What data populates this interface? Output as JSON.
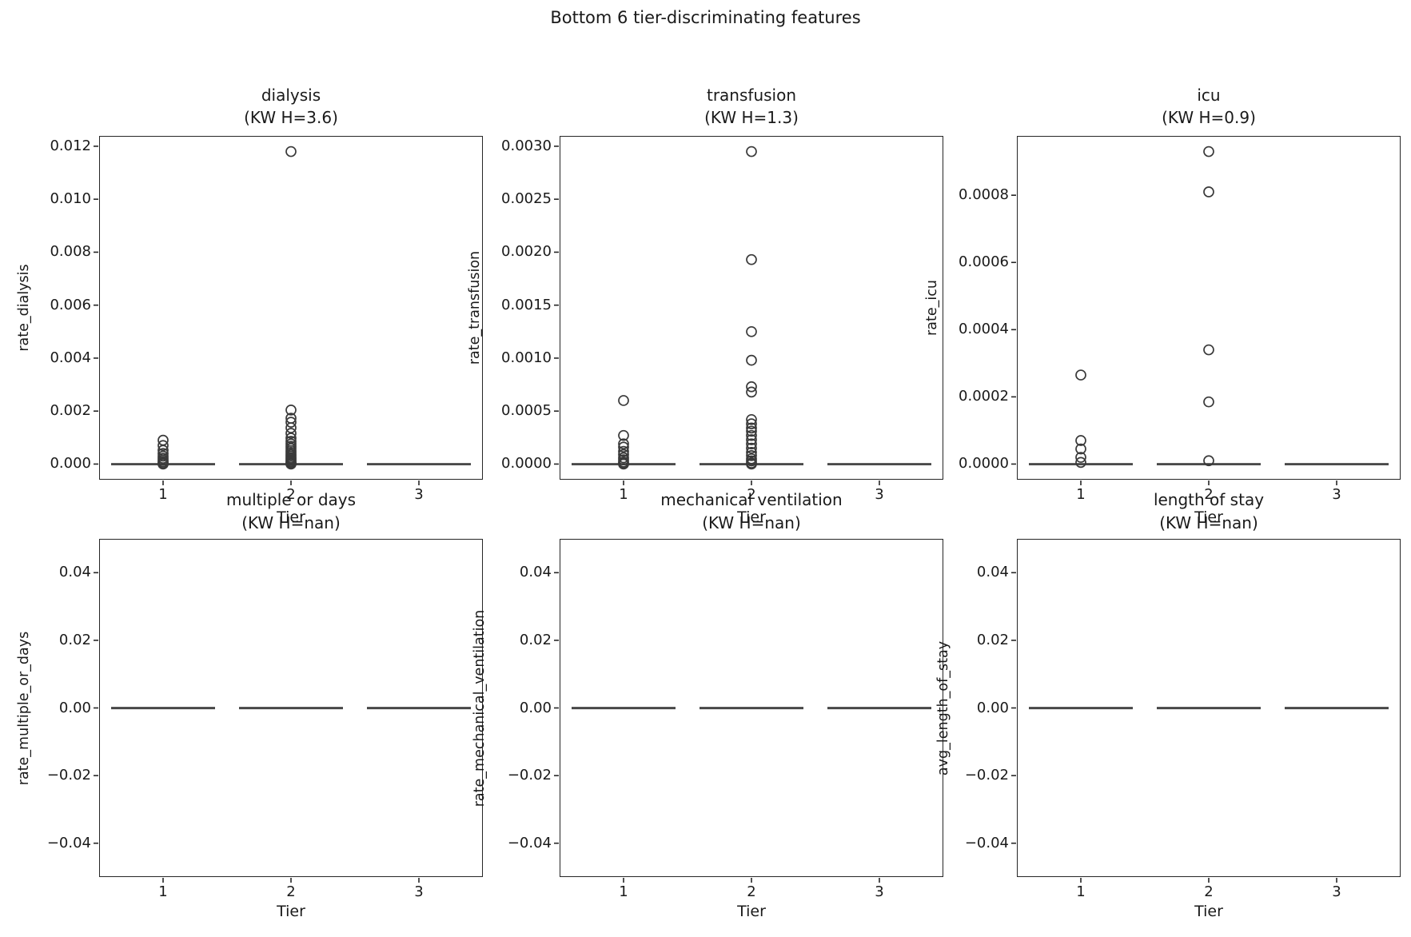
{
  "figure": {
    "suptitle": "Bottom 6 tier-discriminating features",
    "background": "#ffffff",
    "text_color": "#1a1a1a",
    "spine_color": "#262626",
    "marker_color": "#3a3a3a",
    "median_echo_color": "#8c8c8c"
  },
  "chart_data": {
    "type": "boxplot",
    "grid": {
      "rows": 2,
      "cols": 3
    },
    "xlabel": "Tier",
    "xtick_labels": [
      "1",
      "2",
      "3"
    ],
    "positions": [
      1,
      2,
      3
    ],
    "subplots": [
      {
        "title": "dialysis",
        "subtitle": "(KW H=3.6)",
        "ylabel": "rate_dialysis",
        "ylim": [
          -0.00059,
          0.01239
        ],
        "ytick_values": [
          0.0,
          0.002,
          0.004,
          0.006,
          0.008,
          0.01,
          0.012
        ],
        "ytick_labels": [
          "0.000",
          "0.002",
          "0.004",
          "0.006",
          "0.008",
          "0.010",
          "0.012"
        ],
        "medians": [
          0,
          0,
          0
        ],
        "fliers": [
          [
            0.0009,
            0.0007,
            0.00052,
            0.0004,
            0.0003,
            0.00022,
            0.00015,
            9e-05,
            4e-05,
            1e-05,
            0
          ],
          [
            0.0118,
            0.00204,
            0.00173,
            0.00158,
            0.00137,
            0.00116,
            0.00098,
            0.00086,
            0.00076,
            0.00067,
            0.00059,
            0.00051,
            0.00044,
            0.00037,
            0.00031,
            0.00025,
            0.0002,
            0.00015,
            0.0001,
            6e-05,
            3e-05,
            1e-05,
            0
          ],
          []
        ]
      },
      {
        "title": "transfusion",
        "subtitle": "(KW H=1.3)",
        "ylabel": "rate_transfusion",
        "ylim": [
          -0.0001475,
          0.0030975
        ],
        "ytick_values": [
          0.0,
          0.0005,
          0.001,
          0.0015,
          0.002,
          0.0025,
          0.003
        ],
        "ytick_labels": [
          "0.0000",
          "0.0005",
          "0.0010",
          "0.0015",
          "0.0020",
          "0.0025",
          "0.0030"
        ],
        "medians": [
          0,
          0,
          0
        ],
        "fliers": [
          [
            0.0006,
            0.00027,
            0.00019,
            0.00016,
            0.00012,
            9e-05,
            6e-05,
            4e-05,
            2e-05,
            1e-05,
            0
          ],
          [
            0.00295,
            0.00193,
            0.00125,
            0.00098,
            0.00073,
            0.00068,
            0.00042,
            0.00038,
            0.00034,
            0.00031,
            0.00027,
            0.00023,
            0.00019,
            0.00015,
            0.00011,
            8e-05,
            5e-05,
            3e-05,
            1e-05,
            0
          ],
          []
        ]
      },
      {
        "title": "icu",
        "subtitle": "(KW H=0.9)",
        "ylabel": "rate_icu",
        "ylim": [
          -4.65e-05,
          0.0009765
        ],
        "ytick_values": [
          0.0,
          0.0002,
          0.0004,
          0.0006,
          0.0008
        ],
        "ytick_labels": [
          "0.0000",
          "0.0002",
          "0.0004",
          "0.0006",
          "0.0008"
        ],
        "medians": [
          0,
          0,
          0
        ],
        "fliers": [
          [
            0.000265,
            7e-05,
            4.5e-05,
            2e-05,
            5e-06
          ],
          [
            0.00093,
            0.00081,
            0.00034,
            0.000185,
            1e-05
          ],
          []
        ]
      },
      {
        "title": "multiple or days",
        "subtitle": "(KW H=nan)",
        "ylabel": "rate_multiple_or_days",
        "ylim": [
          -0.05,
          0.05
        ],
        "ytick_values": [
          -0.04,
          -0.02,
          0.0,
          0.02,
          0.04
        ],
        "ytick_labels": [
          "−0.04",
          "−0.02",
          "0.00",
          "0.02",
          "0.04"
        ],
        "medians": [
          0,
          0,
          0
        ],
        "fliers": [
          [],
          [],
          []
        ]
      },
      {
        "title": "mechanical ventilation",
        "subtitle": "(KW H=nan)",
        "ylabel": "rate_mechanical_ventilation",
        "ylim": [
          -0.05,
          0.05
        ],
        "ytick_values": [
          -0.04,
          -0.02,
          0.0,
          0.02,
          0.04
        ],
        "ytick_labels": [
          "−0.04",
          "−0.02",
          "0.00",
          "0.02",
          "0.04"
        ],
        "medians": [
          0,
          0,
          0
        ],
        "fliers": [
          [],
          [],
          []
        ]
      },
      {
        "title": "length of stay",
        "subtitle": "(KW H=nan)",
        "ylabel": "avg_length_of_stay",
        "ylim": [
          -0.05,
          0.05
        ],
        "ytick_values": [
          -0.04,
          -0.02,
          0.0,
          0.02,
          0.04
        ],
        "ytick_labels": [
          "−0.04",
          "−0.02",
          "0.00",
          "0.02",
          "0.04"
        ],
        "medians": [
          0,
          0,
          0
        ],
        "fliers": [
          [],
          [],
          []
        ]
      }
    ]
  }
}
